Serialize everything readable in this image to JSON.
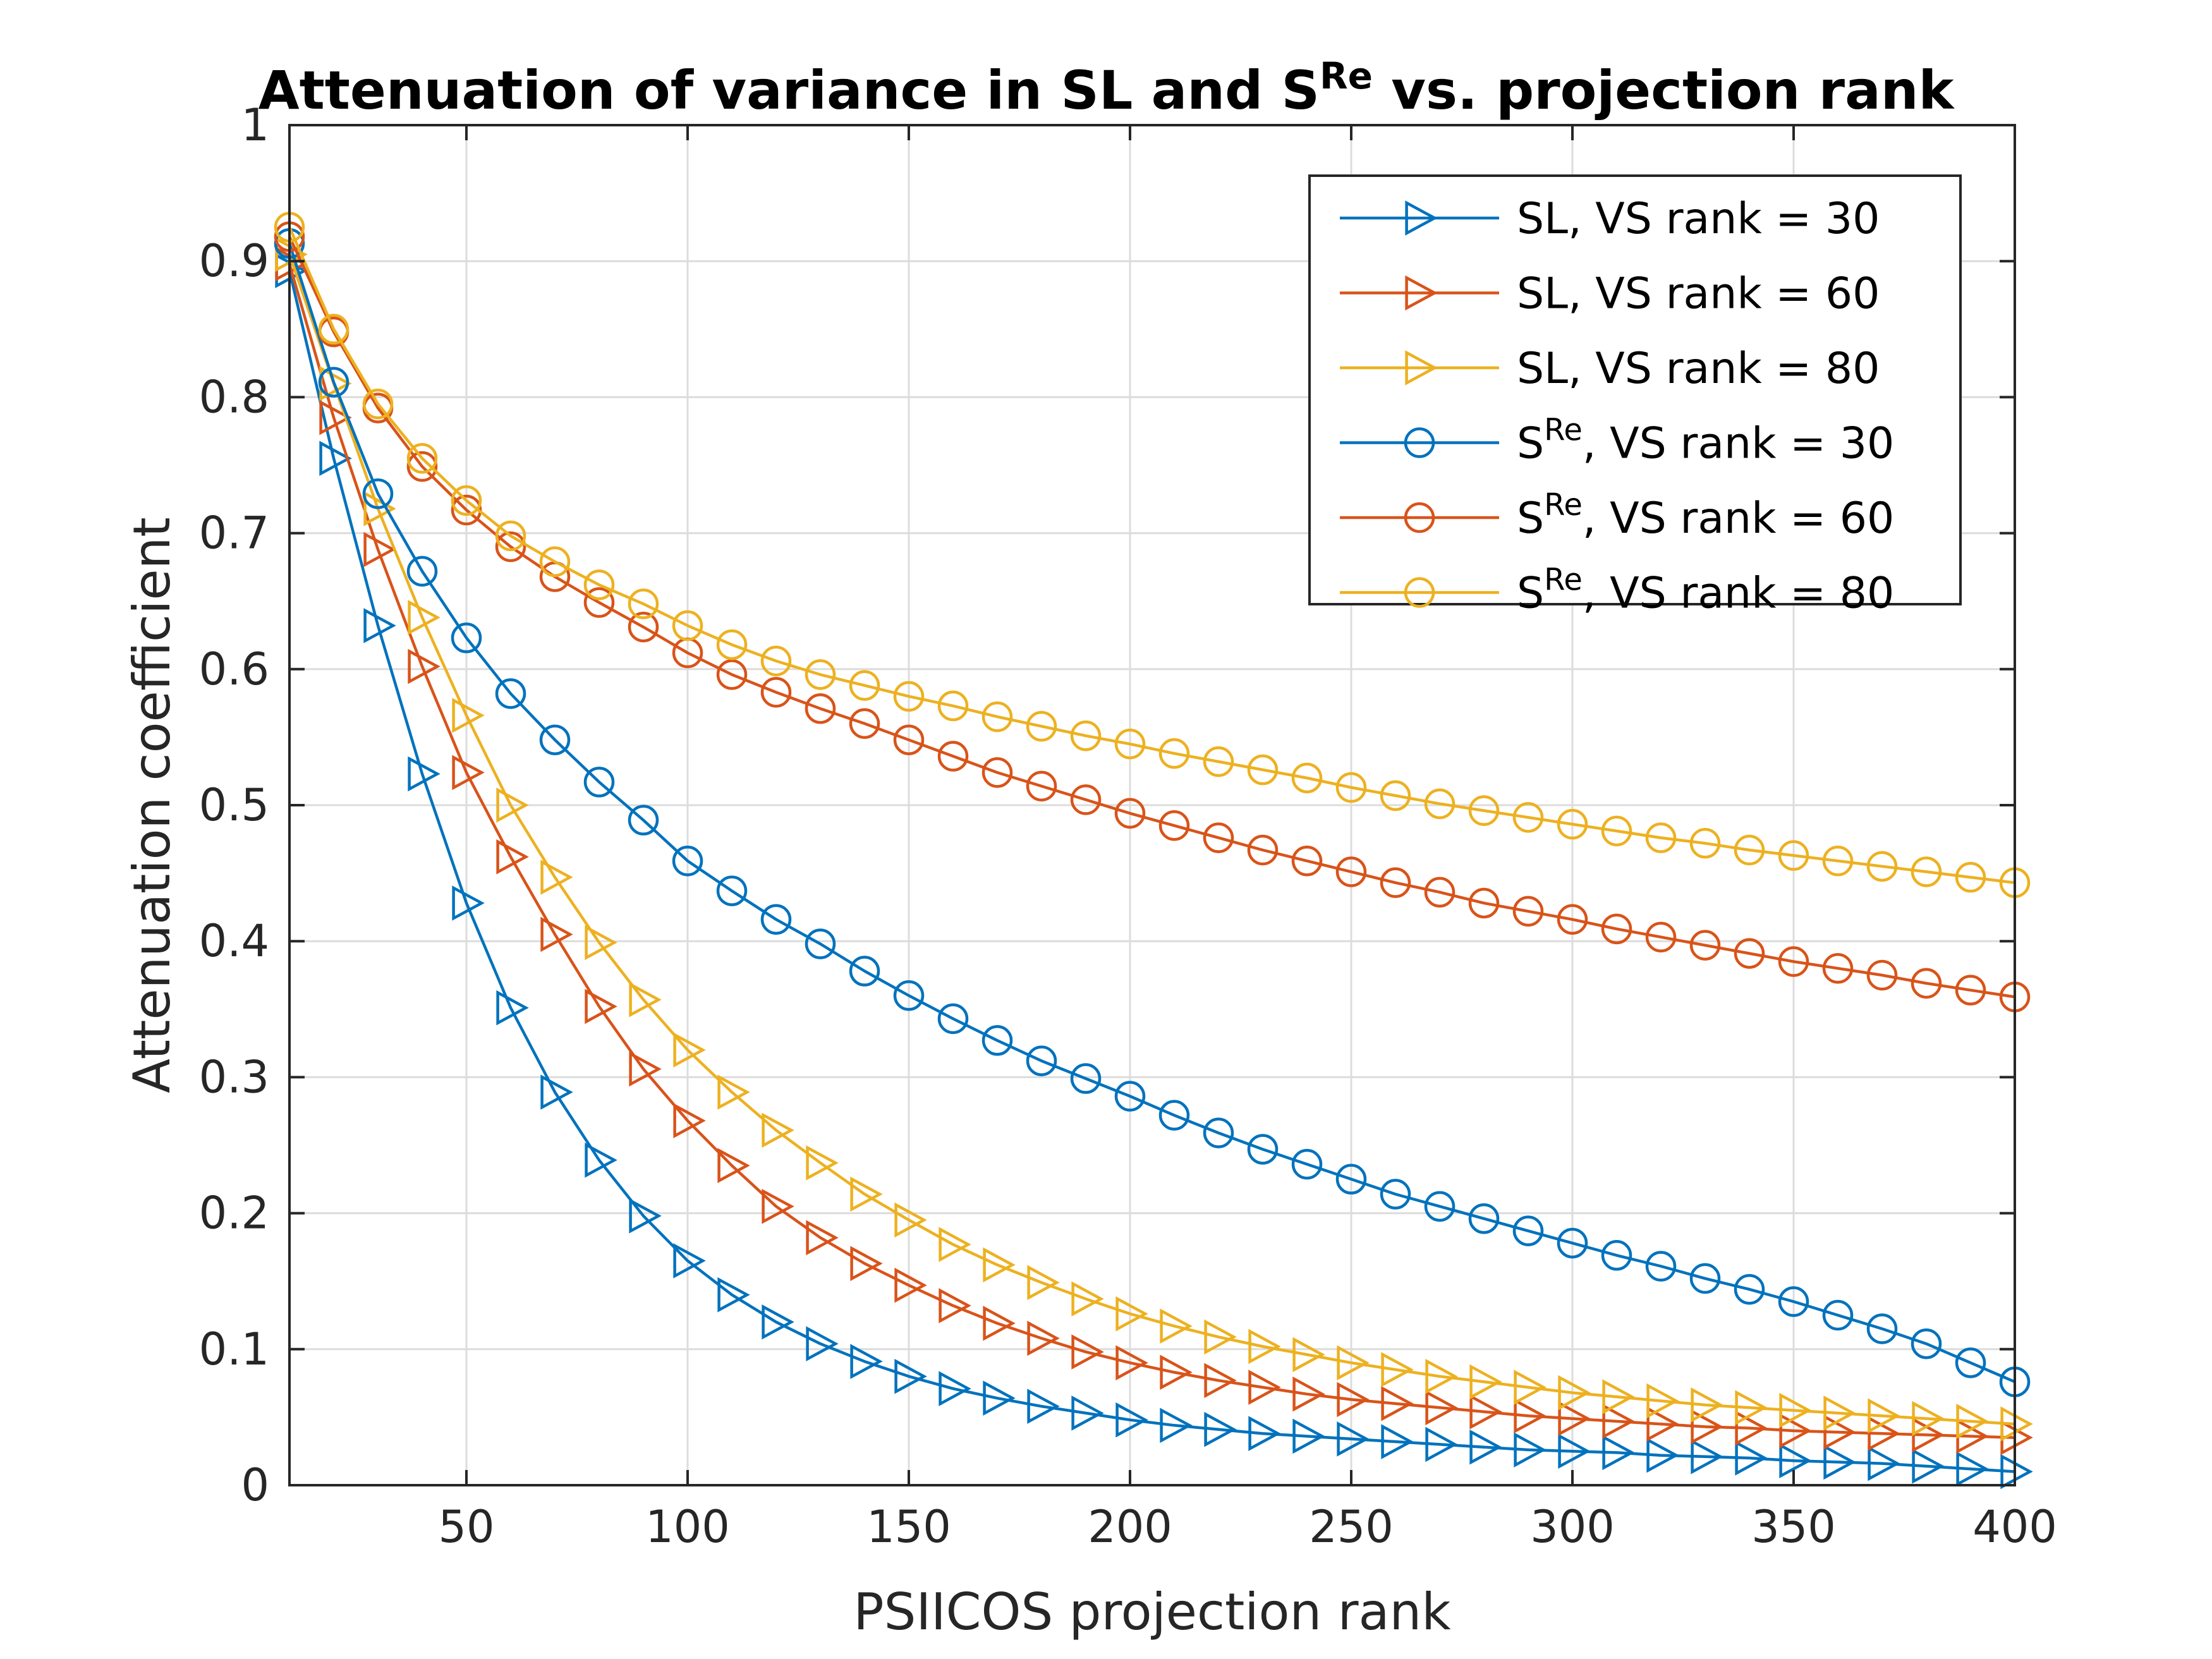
{
  "chart_data": {
    "type": "line",
    "title": "Attenuation of variance in SL and S",
    "title_superscript": "Re",
    "title_suffix": " vs. projection rank",
    "xlabel": "PSIICOS projection rank",
    "ylabel": "Attenuation coefficient",
    "xlim": [
      10,
      400
    ],
    "ylim": [
      0,
      1
    ],
    "xticks": [
      50,
      100,
      150,
      200,
      250,
      300,
      350,
      400
    ],
    "xtick_labels": [
      "50",
      "100",
      "150",
      "200",
      "250",
      "300",
      "350",
      "400"
    ],
    "yticks": [
      0,
      0.1,
      0.2,
      0.3,
      0.4,
      0.5,
      0.6,
      0.7,
      0.8,
      0.9,
      1
    ],
    "ytick_labels": [
      "0",
      "0.1",
      "0.2",
      "0.3",
      "0.4",
      "0.5",
      "0.6",
      "0.7",
      "0.8",
      "0.9",
      "1"
    ],
    "grid": true,
    "legend_position": "top-right",
    "x": [
      10,
      20,
      30,
      40,
      50,
      60,
      70,
      80,
      90,
      100,
      110,
      120,
      130,
      140,
      150,
      160,
      170,
      180,
      190,
      200,
      210,
      220,
      230,
      240,
      250,
      260,
      270,
      280,
      290,
      300,
      310,
      320,
      330,
      340,
      350,
      360,
      370,
      380,
      390,
      400
    ],
    "series": [
      {
        "name": "SL, VS rank = 30",
        "name_prefix": "SL",
        "name_sup": "",
        "name_suffix": ", VS rank = 30",
        "color": "#0072BD",
        "marker": "triangle-right",
        "values": [
          0.893,
          0.755,
          0.632,
          0.523,
          0.428,
          0.351,
          0.289,
          0.239,
          0.198,
          0.165,
          0.14,
          0.12,
          0.104,
          0.091,
          0.08,
          0.071,
          0.064,
          0.058,
          0.053,
          0.048,
          0.044,
          0.041,
          0.038,
          0.036,
          0.034,
          0.032,
          0.03,
          0.028,
          0.026,
          0.025,
          0.024,
          0.022,
          0.021,
          0.02,
          0.018,
          0.017,
          0.016,
          0.014,
          0.012,
          0.01
        ]
      },
      {
        "name": "SL, VS rank = 60",
        "name_prefix": "SL",
        "name_sup": "",
        "name_suffix": ", VS rank = 60",
        "color": "#D95319",
        "marker": "triangle-right",
        "values": [
          0.898,
          0.785,
          0.688,
          0.602,
          0.524,
          0.462,
          0.405,
          0.352,
          0.306,
          0.268,
          0.235,
          0.205,
          0.182,
          0.163,
          0.147,
          0.132,
          0.119,
          0.108,
          0.098,
          0.09,
          0.083,
          0.077,
          0.072,
          0.067,
          0.063,
          0.06,
          0.057,
          0.054,
          0.051,
          0.049,
          0.047,
          0.045,
          0.043,
          0.042,
          0.04,
          0.039,
          0.038,
          0.037,
          0.036,
          0.035
        ]
      },
      {
        "name": "SL, VS rank = 80",
        "name_prefix": "SL",
        "name_sup": "",
        "name_suffix": ", VS rank = 80",
        "color": "#EDB120",
        "marker": "triangle-right",
        "values": [
          0.905,
          0.81,
          0.718,
          0.638,
          0.566,
          0.5,
          0.447,
          0.399,
          0.357,
          0.32,
          0.289,
          0.261,
          0.237,
          0.214,
          0.195,
          0.177,
          0.162,
          0.149,
          0.137,
          0.126,
          0.117,
          0.109,
          0.102,
          0.096,
          0.09,
          0.085,
          0.08,
          0.076,
          0.072,
          0.068,
          0.065,
          0.062,
          0.059,
          0.057,
          0.055,
          0.053,
          0.051,
          0.049,
          0.047,
          0.045
        ]
      },
      {
        "name": "SRe, VS rank = 30",
        "name_prefix": "S",
        "name_sup": "Re",
        "name_suffix": ", VS rank = 30",
        "color": "#0072BD",
        "marker": "circle",
        "values": [
          0.913,
          0.811,
          0.729,
          0.672,
          0.623,
          0.582,
          0.548,
          0.517,
          0.489,
          0.459,
          0.437,
          0.416,
          0.398,
          0.378,
          0.36,
          0.343,
          0.327,
          0.312,
          0.299,
          0.286,
          0.272,
          0.259,
          0.247,
          0.236,
          0.225,
          0.214,
          0.205,
          0.196,
          0.187,
          0.178,
          0.169,
          0.161,
          0.152,
          0.144,
          0.135,
          0.125,
          0.115,
          0.104,
          0.09,
          0.076
        ]
      },
      {
        "name": "SRe, VS rank = 60",
        "name_prefix": "S",
        "name_sup": "Re",
        "name_suffix": ", VS rank = 60",
        "color": "#D95319",
        "marker": "circle",
        "values": [
          0.918,
          0.848,
          0.792,
          0.749,
          0.717,
          0.69,
          0.668,
          0.649,
          0.631,
          0.612,
          0.596,
          0.583,
          0.571,
          0.56,
          0.548,
          0.536,
          0.524,
          0.514,
          0.504,
          0.494,
          0.485,
          0.476,
          0.467,
          0.459,
          0.451,
          0.443,
          0.436,
          0.428,
          0.422,
          0.416,
          0.409,
          0.403,
          0.397,
          0.391,
          0.385,
          0.38,
          0.375,
          0.369,
          0.364,
          0.359
        ]
      },
      {
        "name": "SRe, VS rank = 80",
        "name_prefix": "S",
        "name_sup": "Re",
        "name_suffix": ", VS rank = 80",
        "color": "#EDB120",
        "marker": "circle",
        "values": [
          0.925,
          0.85,
          0.795,
          0.755,
          0.724,
          0.698,
          0.679,
          0.662,
          0.648,
          0.632,
          0.618,
          0.606,
          0.596,
          0.588,
          0.58,
          0.573,
          0.565,
          0.558,
          0.551,
          0.545,
          0.538,
          0.532,
          0.526,
          0.52,
          0.513,
          0.507,
          0.501,
          0.496,
          0.491,
          0.486,
          0.481,
          0.476,
          0.472,
          0.467,
          0.463,
          0.459,
          0.455,
          0.451,
          0.447,
          0.443
        ]
      }
    ]
  }
}
